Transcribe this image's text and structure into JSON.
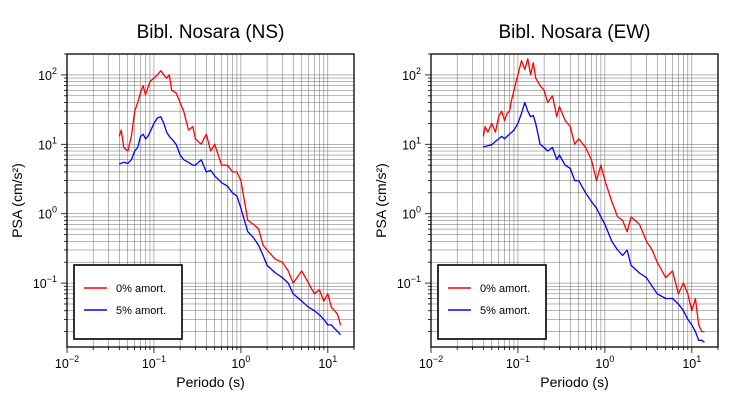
{
  "chart_data": [
    {
      "type": "line",
      "title": "Bibl. Nosara (NS)",
      "xlabel": "Periodo (s)",
      "ylabel": "PSA (cm/s²)",
      "xscale": "log",
      "yscale": "log",
      "xlim": [
        0.01,
        20
      ],
      "ylim": [
        0.012,
        200
      ],
      "grid": true,
      "legend_position": "bottom-left",
      "x_ticks": [
        {
          "base": "10",
          "exp": "−2"
        },
        {
          "base": "10",
          "exp": "−1"
        },
        {
          "base": "10",
          "exp": "0"
        },
        {
          "base": "10",
          "exp": "1"
        }
      ],
      "y_ticks": [
        {
          "base": "10",
          "exp": "−1"
        },
        {
          "base": "10",
          "exp": "0"
        },
        {
          "base": "10",
          "exp": "1"
        },
        {
          "base": "10",
          "exp": "2"
        }
      ],
      "series": [
        {
          "name": "0% amort.",
          "color": "#ff0000",
          "x": [
            0.04,
            0.042,
            0.045,
            0.05,
            0.055,
            0.06,
            0.065,
            0.07,
            0.075,
            0.08,
            0.085,
            0.09,
            0.1,
            0.11,
            0.12,
            0.13,
            0.14,
            0.15,
            0.16,
            0.18,
            0.2,
            0.22,
            0.25,
            0.28,
            0.3,
            0.35,
            0.4,
            0.45,
            0.5,
            0.6,
            0.7,
            0.8,
            0.9,
            1.0,
            1.2,
            1.4,
            1.6,
            1.8,
            2.0,
            2.5,
            3.0,
            3.5,
            4.0,
            5.0,
            6.0,
            7.0,
            8.0,
            9.0,
            10.0,
            11.0,
            12.0,
            13.0,
            14.0
          ],
          "y": [
            13,
            16,
            9,
            8,
            13,
            30,
            40,
            55,
            70,
            52,
            65,
            80,
            90,
            100,
            115,
            100,
            90,
            100,
            60,
            55,
            40,
            30,
            16,
            18,
            12,
            10,
            14,
            8,
            10,
            5,
            5,
            4,
            4,
            3,
            0.8,
            0.7,
            0.6,
            0.35,
            0.3,
            0.22,
            0.2,
            0.15,
            0.1,
            0.15,
            0.1,
            0.07,
            0.08,
            0.055,
            0.07,
            0.045,
            0.04,
            0.035,
            0.025
          ]
        },
        {
          "name": "5% amort.",
          "color": "#0000ff",
          "x": [
            0.04,
            0.045,
            0.05,
            0.055,
            0.06,
            0.065,
            0.07,
            0.075,
            0.08,
            0.085,
            0.09,
            0.1,
            0.11,
            0.12,
            0.13,
            0.14,
            0.15,
            0.16,
            0.18,
            0.2,
            0.22,
            0.25,
            0.28,
            0.3,
            0.35,
            0.4,
            0.45,
            0.5,
            0.6,
            0.7,
            0.8,
            0.9,
            1.0,
            1.2,
            1.4,
            1.6,
            1.8,
            2.0,
            2.5,
            3.0,
            3.5,
            4.0,
            5.0,
            6.0,
            7.0,
            8.0,
            9.0,
            10.0,
            11.0,
            12.0,
            13.0,
            14.0
          ],
          "y": [
            5.2,
            5.5,
            5.3,
            6,
            8,
            9,
            13,
            14,
            12,
            13,
            15,
            20,
            24,
            25,
            20,
            15,
            13,
            12,
            10,
            7,
            6,
            5.5,
            5,
            5,
            6,
            4,
            4.2,
            3.5,
            2.8,
            2.5,
            2,
            1.8,
            1.2,
            0.55,
            0.45,
            0.35,
            0.25,
            0.18,
            0.14,
            0.12,
            0.1,
            0.07,
            0.055,
            0.045,
            0.04,
            0.035,
            0.03,
            0.025,
            0.025,
            0.022,
            0.02,
            0.018
          ]
        }
      ]
    },
    {
      "type": "line",
      "title": "Bibl. Nosara (EW)",
      "xlabel": "Periodo (s)",
      "ylabel": "PSA (cm/s²)",
      "xscale": "log",
      "yscale": "log",
      "xlim": [
        0.01,
        20
      ],
      "ylim": [
        0.012,
        200
      ],
      "grid": true,
      "legend_position": "bottom-left",
      "x_ticks": [
        {
          "base": "10",
          "exp": "−2"
        },
        {
          "base": "10",
          "exp": "−1"
        },
        {
          "base": "10",
          "exp": "0"
        },
        {
          "base": "10",
          "exp": "1"
        }
      ],
      "y_ticks": [
        {
          "base": "10",
          "exp": "−1"
        },
        {
          "base": "10",
          "exp": "0"
        },
        {
          "base": "10",
          "exp": "1"
        },
        {
          "base": "10",
          "exp": "2"
        }
      ],
      "series": [
        {
          "name": "0% amort.",
          "color": "#ff0000",
          "x": [
            0.04,
            0.042,
            0.045,
            0.05,
            0.055,
            0.06,
            0.065,
            0.07,
            0.075,
            0.08,
            0.085,
            0.09,
            0.1,
            0.11,
            0.12,
            0.13,
            0.14,
            0.15,
            0.16,
            0.18,
            0.2,
            0.22,
            0.25,
            0.28,
            0.3,
            0.35,
            0.4,
            0.45,
            0.5,
            0.6,
            0.7,
            0.8,
            0.9,
            1.0,
            1.2,
            1.4,
            1.6,
            1.8,
            2.0,
            2.5,
            3.0,
            3.5,
            4.0,
            5.0,
            6.0,
            7.0,
            8.0,
            9.0,
            10.0,
            11.0,
            12.0,
            13.0,
            14.0
          ],
          "y": [
            13,
            18,
            15,
            20,
            15,
            25,
            30,
            22,
            28,
            30,
            45,
            60,
            100,
            160,
            120,
            170,
            100,
            150,
            90,
            70,
            60,
            40,
            50,
            25,
            35,
            22,
            18,
            10,
            12,
            9,
            6,
            3,
            5,
            3,
            1.5,
            0.9,
            0.8,
            0.55,
            0.9,
            0.7,
            0.4,
            0.3,
            0.2,
            0.12,
            0.15,
            0.07,
            0.1,
            0.07,
            0.04,
            0.06,
            0.025,
            0.02,
            0.02
          ]
        },
        {
          "name": "5% amort.",
          "color": "#0000ff",
          "x": [
            0.04,
            0.045,
            0.05,
            0.055,
            0.06,
            0.065,
            0.07,
            0.075,
            0.08,
            0.085,
            0.09,
            0.1,
            0.11,
            0.12,
            0.13,
            0.14,
            0.15,
            0.16,
            0.18,
            0.2,
            0.22,
            0.25,
            0.28,
            0.3,
            0.35,
            0.4,
            0.45,
            0.5,
            0.6,
            0.7,
            0.8,
            0.9,
            1.0,
            1.2,
            1.4,
            1.6,
            1.8,
            2.0,
            2.5,
            3.0,
            3.5,
            4.0,
            5.0,
            6.0,
            7.0,
            8.0,
            9.0,
            10.0,
            11.0,
            12.0,
            13.0,
            14.0
          ],
          "y": [
            9.2,
            9.5,
            9.8,
            11,
            12,
            13,
            12,
            13,
            14,
            15,
            16,
            20,
            28,
            40,
            30,
            25,
            26,
            20,
            10,
            9,
            8,
            9,
            6,
            7,
            5,
            4.5,
            3,
            3,
            2,
            1.5,
            1.2,
            0.9,
            0.7,
            0.4,
            0.3,
            0.25,
            0.3,
            0.18,
            0.14,
            0.12,
            0.09,
            0.07,
            0.06,
            0.06,
            0.05,
            0.04,
            0.03,
            0.025,
            0.02,
            0.015,
            0.015,
            0.014
          ]
        }
      ]
    }
  ]
}
